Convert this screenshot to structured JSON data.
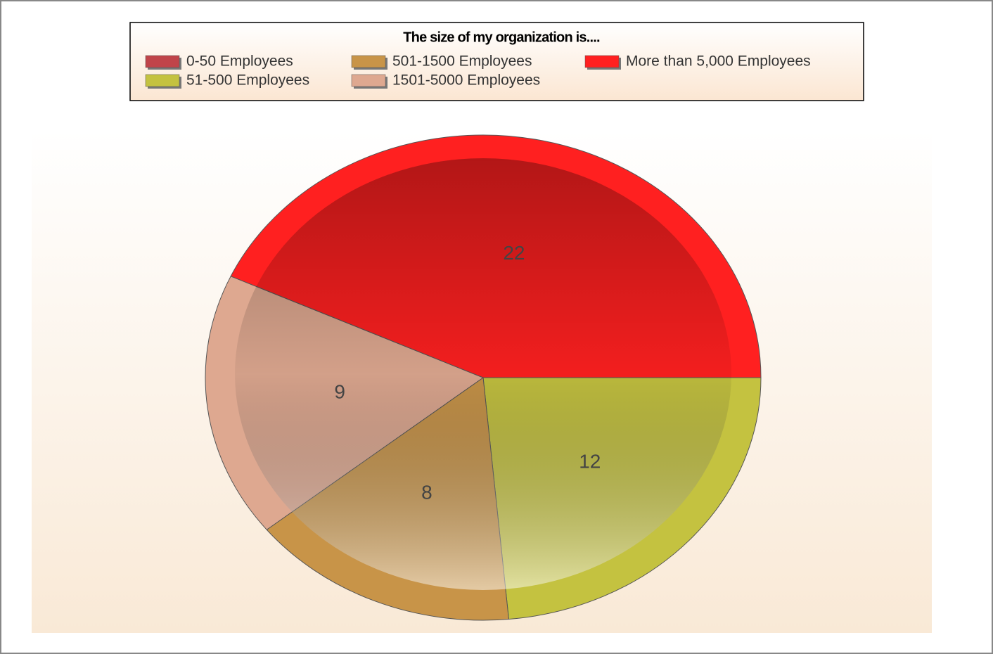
{
  "chart_data": {
    "type": "pie",
    "title": "The size of my organization is....",
    "categories": [
      "0-50 Employees",
      "51-500 Employees",
      "501-1500 Employees",
      "1501-5000 Employees",
      "More than 5,000 Employees"
    ],
    "values": [
      0,
      12,
      8,
      9,
      22
    ],
    "colors": [
      "#c0444a",
      "#c4c240",
      "#c89448",
      "#dea890",
      "#ff2020"
    ],
    "legend": "top"
  }
}
